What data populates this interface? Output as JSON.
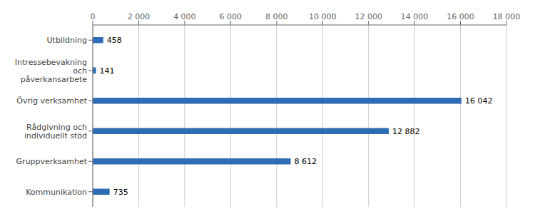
{
  "chart_data": {
    "type": "bar",
    "orientation": "horizontal",
    "categories": [
      "Kommunikation",
      "Gruppverksamhet",
      "Rådgivning och\nindividuellt stöd",
      "Övrig verksamhet",
      "Intressebevakning\noch\npåverkansarbete",
      "Utbildning"
    ],
    "values": [
      735,
      8612,
      12882,
      16042,
      141,
      458
    ],
    "value_labels": [
      "735",
      "8 612",
      "12 882",
      "16 042",
      "141",
      "458"
    ],
    "data_labels": true,
    "color": "#2E6DB4",
    "xlim": [
      0,
      18000
    ],
    "xticks": [
      0,
      {
        "value": 2000,
        "label": "2 000"
      },
      {
        "value": 4000,
        "label": "4 000"
      },
      {
        "value": 6000,
        "label": "6 000"
      },
      {
        "value": 8000,
        "label": "8 000"
      },
      {
        "value": 10000,
        "label": "10 000"
      },
      {
        "value": 12000,
        "label": "12 000"
      },
      {
        "value": 14000,
        "label": "14 000"
      },
      {
        "value": 16000,
        "label": "16 000"
      },
      {
        "value": 18000,
        "label": "18 000"
      }
    ],
    "grid": "x"
  }
}
